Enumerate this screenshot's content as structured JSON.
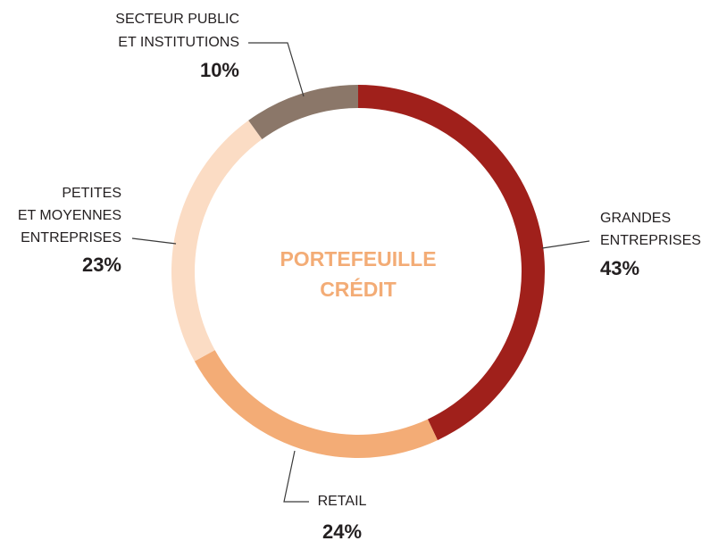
{
  "chart_data": {
    "type": "donut",
    "title": [
      "PORTEFEUILLE",
      "CRÉDIT"
    ],
    "categories": [
      [
        "GRANDES",
        "ENTREPRISES"
      ],
      [
        "RETAIL"
      ],
      [
        "PETITES",
        "ET MOYENNES",
        "ENTREPRISES"
      ],
      [
        "SECTEUR PUBLIC",
        "ET INSTITUTIONS"
      ]
    ],
    "values": [
      43,
      24,
      23,
      10
    ],
    "value_labels": [
      "43%",
      "24%",
      "23%",
      "10%"
    ],
    "colors": [
      "#a0201b",
      "#f3ac76",
      "#fbdcc4",
      "#8b7769"
    ]
  }
}
